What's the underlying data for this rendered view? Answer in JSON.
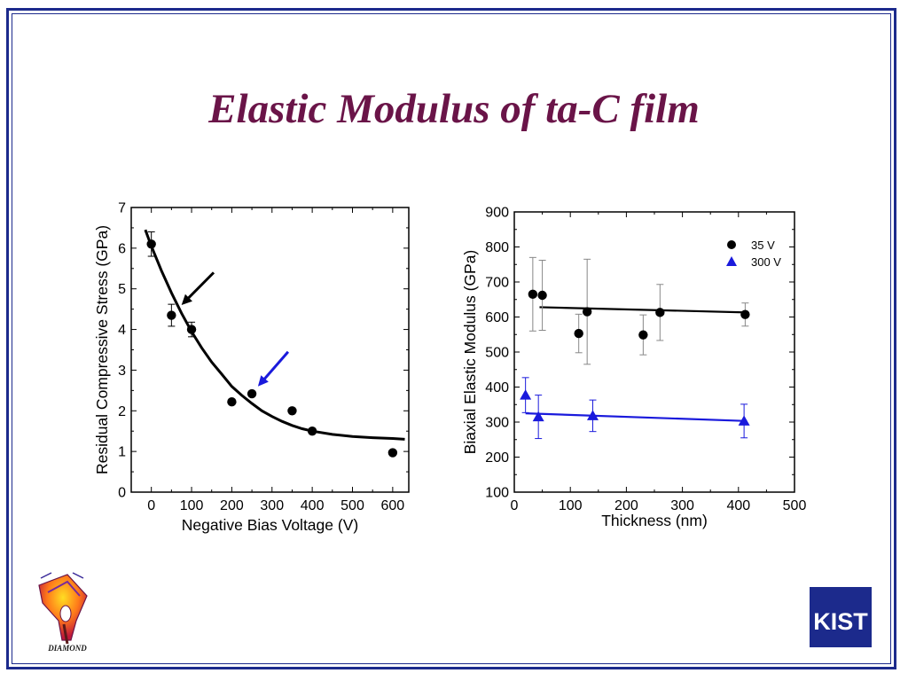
{
  "slide": {
    "title": "Elastic Modulus of ta-C film",
    "frame_color": "#1c2a8c",
    "title_color": "#6a1448"
  },
  "logos": {
    "left": {
      "icon": "diamond-lab-logo",
      "text": "DIAMOND"
    },
    "right": {
      "icon": "kist-logo",
      "text": "KIST",
      "color": "#1c2a8c"
    }
  },
  "chart_data": [
    {
      "type": "scatter",
      "xlabel": "Negative Bias Voltage (V)",
      "ylabel": "Residual Compressive Stress (GPa)",
      "xlim": [
        -50,
        640
      ],
      "ylim": [
        0,
        7
      ],
      "xticks": [
        0,
        100,
        200,
        300,
        400,
        500,
        600
      ],
      "yticks": [
        0,
        1,
        2,
        3,
        4,
        5,
        6,
        7
      ],
      "grid": false,
      "series": [
        {
          "marker": "circle",
          "color": "#000000",
          "points": [
            {
              "x": 0,
              "y": 6.1,
              "err": 0.3
            },
            {
              "x": 50,
              "y": 4.35,
              "err": 0.27
            },
            {
              "x": 100,
              "y": 4.0,
              "err": 0.18
            },
            {
              "x": 200,
              "y": 2.22,
              "err": 0.0
            },
            {
              "x": 250,
              "y": 2.42,
              "err": 0.0
            },
            {
              "x": 350,
              "y": 2.0,
              "err": 0.0
            },
            {
              "x": 400,
              "y": 1.5,
              "err": 0.0
            },
            {
              "x": 600,
              "y": 0.97,
              "err": 0.0
            }
          ]
        }
      ],
      "fit_curve": {
        "color": "#000000",
        "points": [
          [
            -15,
            6.45
          ],
          [
            0,
            6.05
          ],
          [
            25,
            5.45
          ],
          [
            50,
            4.9
          ],
          [
            75,
            4.4
          ],
          [
            100,
            3.95
          ],
          [
            125,
            3.55
          ],
          [
            150,
            3.2
          ],
          [
            175,
            2.9
          ],
          [
            200,
            2.6
          ],
          [
            225,
            2.38
          ],
          [
            250,
            2.18
          ],
          [
            275,
            2.0
          ],
          [
            300,
            1.86
          ],
          [
            325,
            1.74
          ],
          [
            350,
            1.64
          ],
          [
            375,
            1.56
          ],
          [
            400,
            1.5
          ],
          [
            450,
            1.42
          ],
          [
            500,
            1.37
          ],
          [
            550,
            1.34
          ],
          [
            600,
            1.32
          ],
          [
            630,
            1.3
          ]
        ]
      },
      "annotations": [
        {
          "type": "arrow",
          "color": "#000000",
          "from": [
            155,
            5.4
          ],
          "to": [
            75,
            4.6
          ]
        },
        {
          "type": "arrow",
          "color": "#1a1adc",
          "from": [
            340,
            3.45
          ],
          "to": [
            265,
            2.6
          ]
        }
      ]
    },
    {
      "type": "scatter",
      "xlabel": "Thickness (nm)",
      "ylabel": "Biaxial Elastic Modulus (GPa)",
      "xlim": [
        0,
        500
      ],
      "ylim": [
        100,
        900
      ],
      "xticks": [
        0,
        100,
        200,
        300,
        400,
        500
      ],
      "yticks": [
        100,
        200,
        300,
        400,
        500,
        600,
        700,
        800,
        900
      ],
      "grid": false,
      "legend_position": "top-right",
      "series": [
        {
          "name": "35 V",
          "marker": "circle",
          "color": "#000000",
          "error_color": "#888888",
          "points": [
            {
              "x": 33,
              "y": 665,
              "err": 105
            },
            {
              "x": 50,
              "y": 662,
              "err": 100
            },
            {
              "x": 115,
              "y": 553,
              "err": 55
            },
            {
              "x": 130,
              "y": 615,
              "err": 150
            },
            {
              "x": 230,
              "y": 549,
              "err": 57
            },
            {
              "x": 260,
              "y": 613,
              "err": 80
            },
            {
              "x": 412,
              "y": 607,
              "err": 33
            }
          ],
          "fit_line": [
            [
              45,
              628
            ],
            [
              415,
              613
            ]
          ]
        },
        {
          "name": "300 V",
          "marker": "triangle",
          "color": "#1a1adc",
          "error_color": "#1a1adc",
          "points": [
            {
              "x": 20,
              "y": 377,
              "err": 50
            },
            {
              "x": 43,
              "y": 315,
              "err": 62
            },
            {
              "x": 140,
              "y": 318,
              "err": 45
            },
            {
              "x": 410,
              "y": 303,
              "err": 48
            }
          ],
          "fit_line": [
            [
              20,
              325
            ],
            [
              415,
              303
            ]
          ]
        }
      ]
    }
  ]
}
